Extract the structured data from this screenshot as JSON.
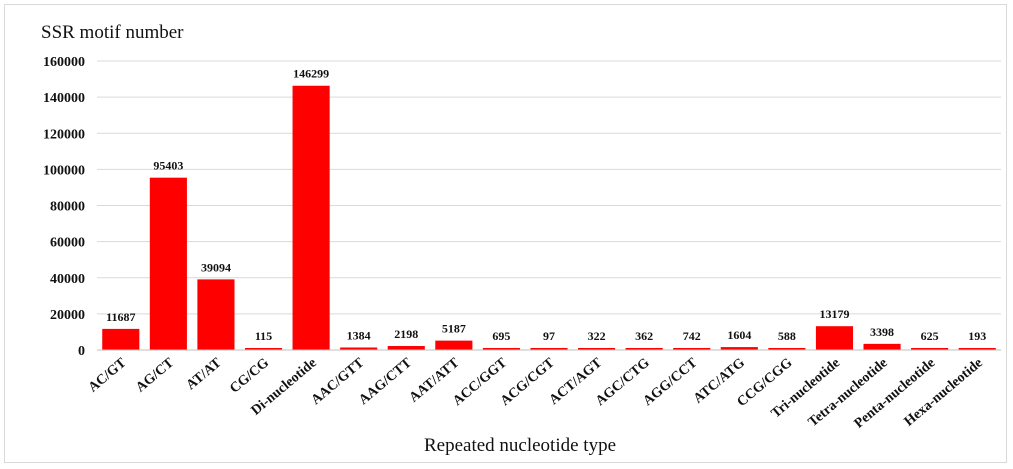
{
  "chart_data": {
    "type": "bar",
    "ylabel": "SSR motif number",
    "xlabel": "Repeated nucleotide type",
    "ylim": [
      0,
      160000
    ],
    "yticks": [
      0,
      20000,
      40000,
      60000,
      80000,
      100000,
      120000,
      140000,
      160000
    ],
    "grid": true,
    "legend": "none",
    "bar_color": "#ff0000",
    "categories": [
      "AC/GT",
      "AG/CT",
      "AT/AT",
      "CG/CG",
      "Di-nucleotide",
      "AAC/GTT",
      "AAG/CTT",
      "AAT/ATT",
      "ACC/GGT",
      "ACG/CGT",
      "ACT/AGT",
      "AGC/CTG",
      "AGG/CCT",
      "ATC/ATG",
      "CCG/CGG",
      "Tri-nucleotide",
      "Tetra-nucleotide",
      "Penta-nucleotide",
      "Hexa-nucleotide"
    ],
    "values": [
      11687,
      95403,
      39094,
      115,
      146299,
      1384,
      2198,
      5187,
      695,
      97,
      322,
      362,
      742,
      1604,
      588,
      13179,
      3398,
      625,
      193
    ]
  }
}
